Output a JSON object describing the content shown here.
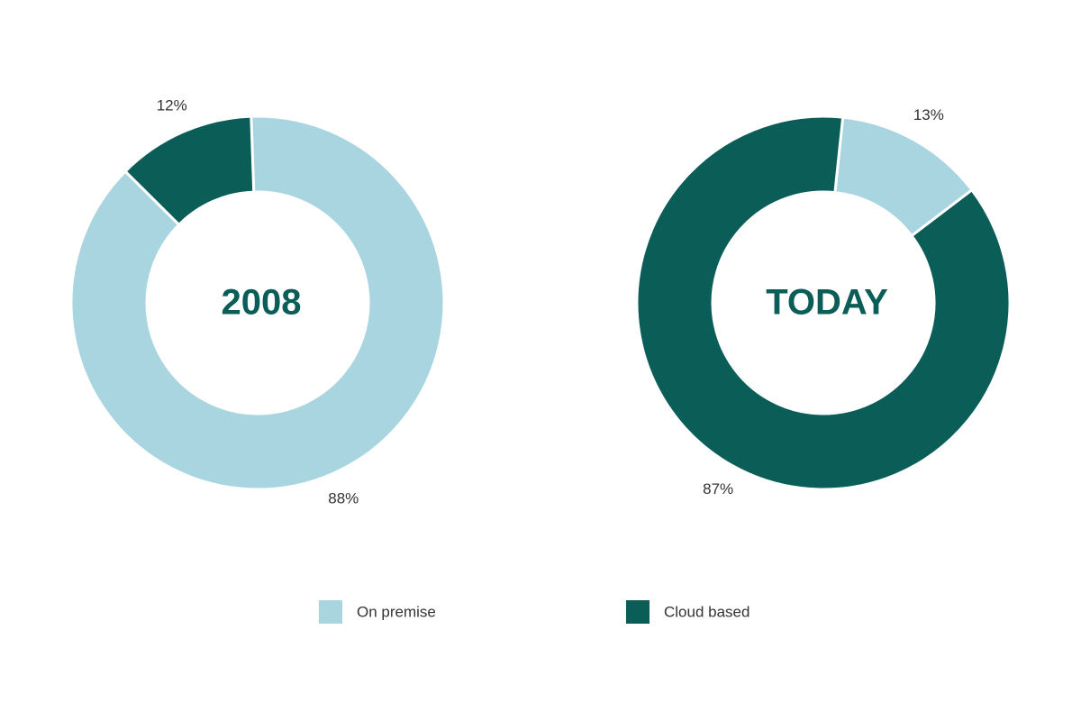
{
  "chart_data": [
    {
      "type": "donut",
      "title": "2008",
      "categories": [
        "On premise",
        "Cloud based"
      ],
      "values": [
        88,
        12
      ],
      "value_labels": [
        "88%",
        "12%"
      ],
      "colors": [
        "#a8d5e0",
        "#0b5e58"
      ]
    },
    {
      "type": "donut",
      "title": "TODAY",
      "categories": [
        "On premise",
        "Cloud based"
      ],
      "values": [
        13,
        87
      ],
      "value_labels": [
        "13%",
        "87%"
      ],
      "colors": [
        "#a8d5e0",
        "#0b5e58"
      ]
    }
  ]
}
